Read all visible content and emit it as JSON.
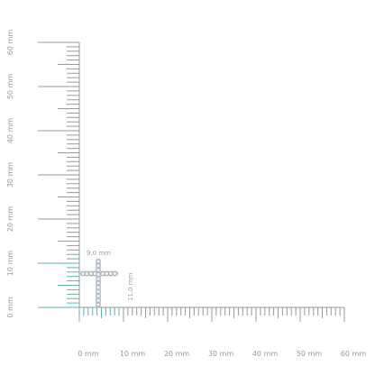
{
  "ruler": {
    "unit_suffix": " mm",
    "range_mm": [
      0,
      60
    ],
    "label_step_mm": 10,
    "labels": [
      "0 mm",
      "10 mm",
      "20 mm",
      "30 mm",
      "40 mm",
      "50 mm",
      "60 mm"
    ],
    "highlight_width_mm": 9.0,
    "highlight_height_mm": 11.0
  },
  "product": {
    "width_label": "9.0 mm",
    "height_label": "11.0 mm",
    "icon": "diamond-cross-earring"
  },
  "colors": {
    "tick": "#9a9a9a",
    "highlight": "#5fb3b0",
    "label": "#9a9a9a",
    "metal": "#c9ccd2",
    "stone": "#eef3f8"
  }
}
